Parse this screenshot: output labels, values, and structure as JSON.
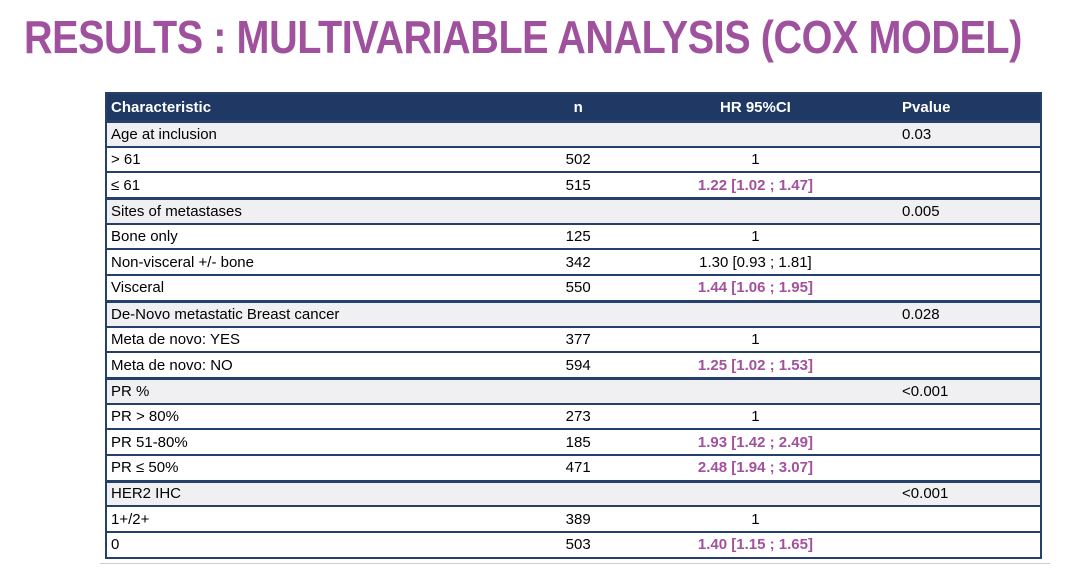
{
  "title": "RESULTS : MULTIVARIABLE ANALYSIS (COX MODEL)",
  "colors": {
    "title_color": "#a0519e",
    "header_bg": "#1f3864",
    "border_color": "#24406b",
    "category_bg": "#f0f0f2",
    "hr_highlight": "#a3519d"
  },
  "table": {
    "headers": [
      "Characteristic",
      "n",
      "HR 95%CI",
      "Pvalue"
    ],
    "rows": [
      {
        "label": "Age at inclusion",
        "n": "",
        "hr": "",
        "p": "0.03",
        "type": "category",
        "hr_highlight": false
      },
      {
        "label": "> 61",
        "n": "502",
        "hr": "1",
        "p": "",
        "type": "data",
        "hr_highlight": false
      },
      {
        "label": "≤ 61",
        "n": "515",
        "hr": "1.22 [1.02 ; 1.47]",
        "p": "",
        "type": "data",
        "hr_highlight": true
      },
      {
        "label": "Sites of metastases",
        "n": "",
        "hr": "",
        "p": "0.005",
        "type": "category",
        "hr_highlight": false
      },
      {
        "label": "Bone only",
        "n": "125",
        "hr": "1",
        "p": "",
        "type": "data",
        "hr_highlight": false
      },
      {
        "label": "Non-visceral +/- bone",
        "n": "342",
        "hr": "1.30 [0.93 ; 1.81]",
        "p": "",
        "type": "data",
        "hr_highlight": false
      },
      {
        "label": "Visceral",
        "n": "550",
        "hr": "1.44 [1.06 ; 1.95]",
        "p": "",
        "type": "data",
        "hr_highlight": true
      },
      {
        "label": "De-Novo metastatic Breast cancer",
        "n": "",
        "hr": "",
        "p": "0.028",
        "type": "category",
        "hr_highlight": false
      },
      {
        "label": "Meta de novo: YES",
        "n": "377",
        "hr": "1",
        "p": "",
        "type": "data",
        "hr_highlight": false
      },
      {
        "label": "Meta de novo: NO",
        "n": "594",
        "hr": "1.25 [1.02 ; 1.53]",
        "p": "",
        "type": "data",
        "hr_highlight": true
      },
      {
        "label": "PR %",
        "n": "",
        "hr": "",
        "p": "<0.001",
        "type": "category",
        "hr_highlight": false
      },
      {
        "label": "PR > 80%",
        "n": "273",
        "hr": "1",
        "p": "",
        "type": "data",
        "hr_highlight": false
      },
      {
        "label": "PR 51-80%",
        "n": "185",
        "hr": "1.93 [1.42 ; 2.49]",
        "p": "",
        "type": "data",
        "hr_highlight": true
      },
      {
        "label": "PR ≤ 50%",
        "n": "471",
        "hr": "2.48 [1.94 ; 3.07]",
        "p": "",
        "type": "data",
        "hr_highlight": true
      },
      {
        "label": "HER2 IHC",
        "n": "",
        "hr": "",
        "p": "<0.001",
        "type": "category",
        "hr_highlight": false
      },
      {
        "label": "1+/2+",
        "n": "389",
        "hr": "1",
        "p": "",
        "type": "data",
        "hr_highlight": false
      },
      {
        "label": "0",
        "n": "503",
        "hr": "1.40 [1.15 ; 1.65]",
        "p": "",
        "type": "data",
        "hr_highlight": true
      }
    ]
  }
}
